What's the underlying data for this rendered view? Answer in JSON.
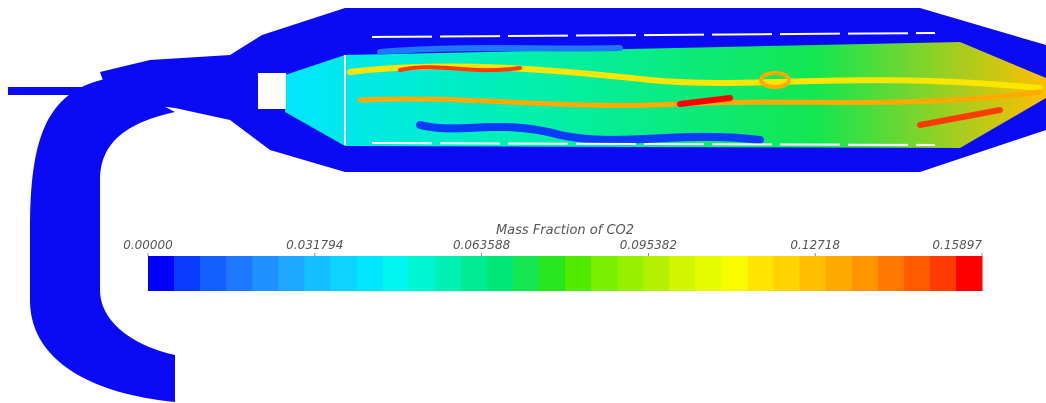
{
  "colorbar": {
    "title": "Mass Fraction of CO2",
    "ticks": [
      {
        "value": 0,
        "label": "0.00000"
      },
      {
        "value": 0.031794,
        "label": "0.031794"
      },
      {
        "value": 0.063588,
        "label": "0.063588"
      },
      {
        "value": 0.095382,
        "label": "0.095382"
      },
      {
        "value": 0.12718,
        "label": "0.12718"
      },
      {
        "value": 0.15897,
        "label": "0.15897"
      }
    ],
    "colors": [
      "#0000ff",
      "#0a3cff",
      "#1460ff",
      "#1e78ff",
      "#1e90ff",
      "#1ea8ff",
      "#14c0ff",
      "#0ad4ff",
      "#00e6ff",
      "#00f5f0",
      "#00f5d2",
      "#00f0b4",
      "#00eb96",
      "#00e678",
      "#14e650",
      "#28e61e",
      "#50eb00",
      "#78f000",
      "#96f000",
      "#b4f000",
      "#d2f500",
      "#e6fa00",
      "#fafa00",
      "#ffe600",
      "#ffd200",
      "#ffbe00",
      "#ffaa00",
      "#ff9600",
      "#ff7800",
      "#ff5a00",
      "#ff3c00",
      "#ff0000"
    ]
  }
}
